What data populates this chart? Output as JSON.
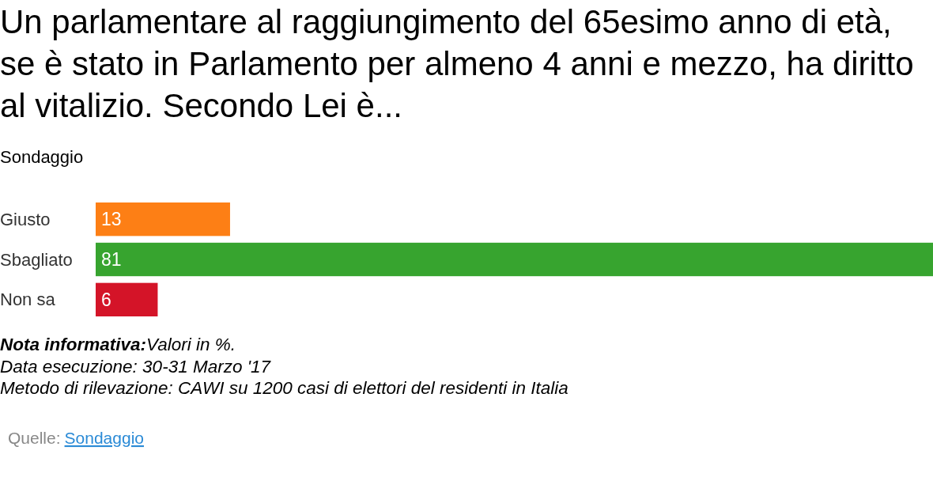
{
  "chart_data": {
    "type": "bar",
    "orientation": "horizontal",
    "title": "Un parlamentare al raggiungimento del 65esimo anno di età, se è stato in Parlamento per almeno 4 anni e mezzo, ha diritto al vitalizio. Secondo Lei è...",
    "subtitle": "Sondaggio",
    "categories": [
      "Giusto",
      "Sbagliato",
      "Non sa"
    ],
    "values": [
      13,
      81,
      6
    ],
    "colors": [
      "#fd7f15",
      "#37a42f",
      "#d41428"
    ],
    "data_labels": true,
    "annotations": [
      "Nota informativa:Valori in %.",
      "Data esecuzione: 30-31 Marzo '17",
      "Metodo di rilevazione: CAWI su 1200 casi di elettori del residenti in Italia",
      "Quelle: Sondaggio"
    ]
  }
}
